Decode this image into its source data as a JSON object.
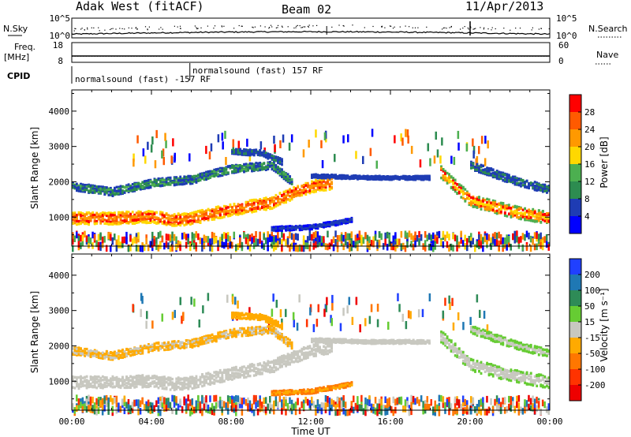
{
  "header": {
    "station": "Adak West (fitACF)",
    "beam": "Beam 02",
    "date": "11/Apr/2013"
  },
  "small_panels": {
    "nsky_label": "N.Sky",
    "nsky_ticks": [
      "10^5",
      "10^0"
    ],
    "nsearch_label": "N.Search",
    "nsearch_ticks": [
      "10^5",
      "10^0"
    ],
    "freq_label_line1": "Freq.",
    "freq_label_line2": "[MHz]",
    "freq_ticks": [
      "18",
      "8"
    ],
    "nave_label": "Nave",
    "nave_ticks": [
      "60",
      "0"
    ],
    "cpid_label": "CPID",
    "cpid_segments": [
      {
        "start_hour": 0.0,
        "end_hour": 5.93,
        "text": "normalsound (fast) -157 RF"
      },
      {
        "start_hour": 5.93,
        "end_hour": 24.0,
        "text": "normalsound (fast) 157 RF"
      }
    ]
  },
  "chart_data": [
    {
      "type": "heatmap",
      "ylabel": "Slant Range [km]",
      "x_range_hours": [
        0,
        24
      ],
      "ylim": [
        180,
        4600
      ],
      "y_ticks": [
        "1000",
        "2000",
        "3000",
        "4000"
      ],
      "colorbar": {
        "label": "Power [dB]",
        "ticks": [
          "4",
          "8",
          "12",
          "16",
          "20",
          "24",
          "28"
        ],
        "colors": [
          "#0000ff",
          "#1e3cb4",
          "#2d8c50",
          "#4caf50",
          "#ffd800",
          "#ff9900",
          "#ff5a00",
          "#ff0000"
        ]
      },
      "bands": [
        {
          "y": [
            [
              0,
              1000
            ],
            [
              2,
              1000
            ],
            [
              4,
              1050
            ],
            [
              5,
              950
            ],
            [
              6,
              1000
            ],
            [
              8,
              1250
            ],
            [
              10,
              1450
            ],
            [
              11,
              1700
            ],
            [
              12,
              1900
            ],
            [
              13,
              2000
            ]
          ],
          "w": 170,
          "cols": [
            5,
            6,
            7,
            5,
            4
          ]
        },
        {
          "y": [
            [
              0,
              1900
            ],
            [
              2,
              1750
            ],
            [
              4,
              2000
            ],
            [
              6,
              2100
            ],
            [
              8,
              2400
            ],
            [
              10,
              2500
            ],
            [
              11,
              2050
            ]
          ],
          "w": 110,
          "cols": [
            1,
            2,
            3,
            2,
            1
          ]
        },
        {
          "y": [
            [
              8,
              2900
            ],
            [
              9.5,
              2850
            ],
            [
              10.5,
              2600
            ]
          ],
          "w": 80,
          "cols": [
            1,
            2,
            1
          ]
        },
        {
          "y": [
            [
              10,
              700
            ],
            [
              12,
              750
            ],
            [
              14,
              950
            ]
          ],
          "w": 60,
          "cols": [
            1,
            1,
            0
          ]
        },
        {
          "y": [
            [
              18.5,
              2300
            ],
            [
              20,
              1500
            ],
            [
              22,
              1200
            ],
            [
              24,
              1000
            ]
          ],
          "w": 170,
          "cols": [
            4,
            5,
            7,
            5,
            3
          ]
        },
        {
          "y": [
            [
              20,
              2500
            ],
            [
              22,
              2100
            ],
            [
              24,
              1800
            ]
          ],
          "w": 110,
          "cols": [
            1,
            2,
            1
          ]
        },
        {
          "y": [
            [
              12,
              2200
            ],
            [
              15,
              2150
            ],
            [
              18,
              2150
            ]
          ],
          "w": 50,
          "cols": [
            1,
            1
          ]
        }
      ]
    },
    {
      "type": "heatmap",
      "ylabel": "Slant Range [km]",
      "xlabel": "Time UT",
      "x_range_hours": [
        0,
        24
      ],
      "ylim": [
        180,
        4600
      ],
      "y_ticks": [
        "1000",
        "2000",
        "3000",
        "4000"
      ],
      "x_ticks": [
        "00:00",
        "04:00",
        "08:00",
        "12:00",
        "16:00",
        "20:00",
        "00:00"
      ],
      "colorbar": {
        "label": "Velocity [m s⁻¹]",
        "ticks": [
          "200",
          "100",
          "50",
          "15",
          "-15",
          "-50",
          "-100",
          "-200"
        ],
        "colors": [
          "#2040ff",
          "#1f78b4",
          "#2e8b57",
          "#66cc33",
          "#c8c8c0",
          "#ffaa00",
          "#ff7700",
          "#ff3300",
          "#ee0000"
        ]
      },
      "bands": [
        {
          "y": [
            [
              0,
              1000
            ],
            [
              2,
              1000
            ],
            [
              4,
              1050
            ],
            [
              5,
              950
            ],
            [
              6,
              1000
            ],
            [
              8,
              1250
            ],
            [
              10,
              1450
            ],
            [
              11,
              1700
            ],
            [
              12,
              1900
            ],
            [
              13,
              2000
            ]
          ],
          "w": 170,
          "cols": [
            4,
            4,
            4
          ]
        },
        {
          "y": [
            [
              0,
              1900
            ],
            [
              2,
              1750
            ],
            [
              4,
              2000
            ],
            [
              6,
              2100
            ],
            [
              8,
              2400
            ],
            [
              10,
              2500
            ],
            [
              11,
              2050
            ]
          ],
          "w": 110,
          "cols": [
            5,
            4,
            5
          ]
        },
        {
          "y": [
            [
              8,
              2900
            ],
            [
              9.5,
              2850
            ],
            [
              10.5,
              2600
            ]
          ],
          "w": 80,
          "cols": [
            5,
            5
          ]
        },
        {
          "y": [
            [
              10,
              700
            ],
            [
              12,
              750
            ],
            [
              14,
              950
            ]
          ],
          "w": 60,
          "cols": [
            5,
            6
          ]
        },
        {
          "y": [
            [
              18.5,
              2300
            ],
            [
              20,
              1500
            ],
            [
              22,
              1200
            ],
            [
              24,
              1000
            ]
          ],
          "w": 170,
          "cols": [
            4,
            4,
            3
          ]
        },
        {
          "y": [
            [
              20,
              2500
            ],
            [
              22,
              2100
            ],
            [
              24,
              1800
            ]
          ],
          "w": 110,
          "cols": [
            4,
            3
          ]
        },
        {
          "y": [
            [
              12,
              2200
            ],
            [
              15,
              2150
            ],
            [
              18,
              2150
            ]
          ],
          "w": 50,
          "cols": [
            4,
            4
          ]
        }
      ]
    }
  ]
}
